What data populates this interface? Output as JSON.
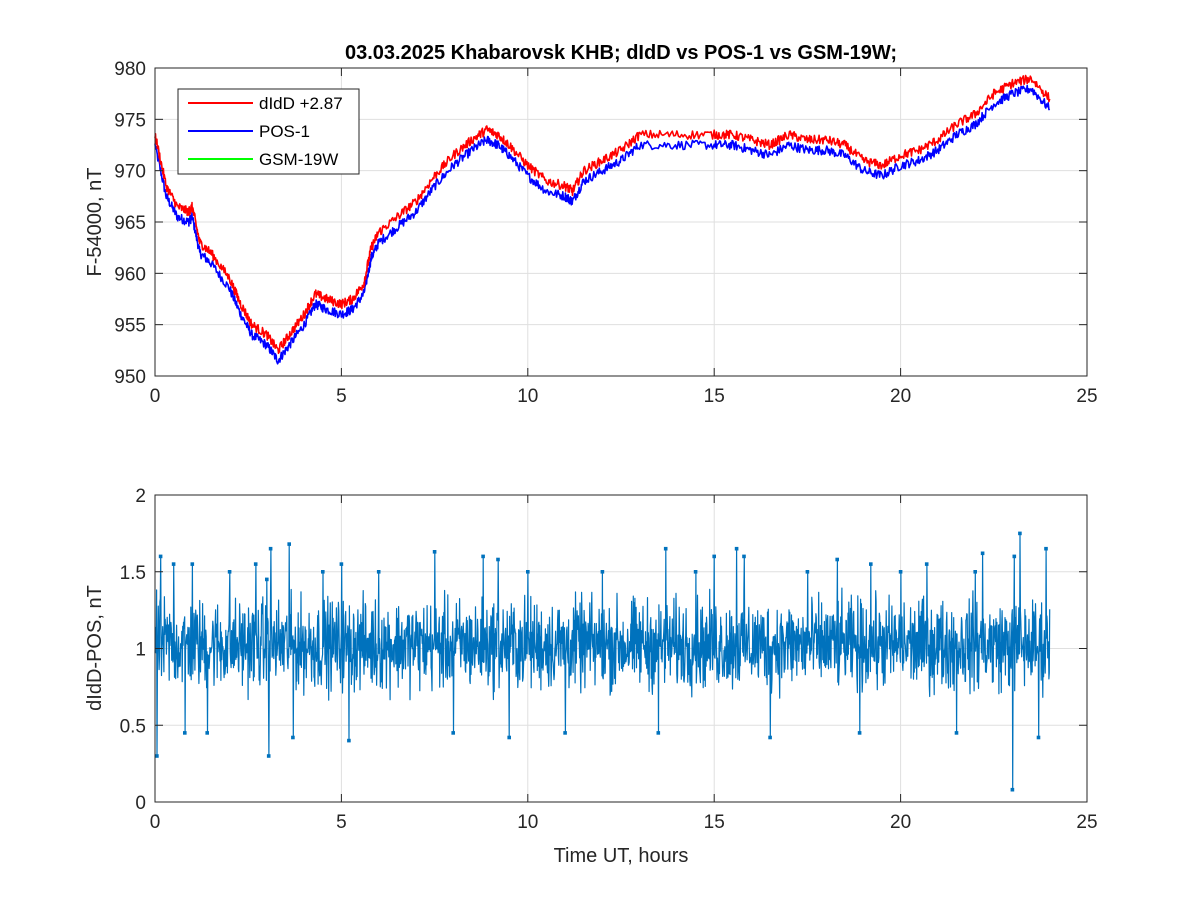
{
  "chart_data": [
    {
      "type": "line",
      "title": "03.03.2025  Khabarovsk KHB; dIdD vs POS-1 vs GSM-19W;",
      "xlabel": "",
      "ylabel": "F-54000, nT",
      "xlim": [
        0,
        25
      ],
      "ylim": [
        950,
        980
      ],
      "xticks": [
        0,
        5,
        10,
        15,
        20,
        25
      ],
      "yticks": [
        950,
        955,
        960,
        965,
        970,
        975,
        980
      ],
      "grid": true,
      "legend_position": "top-left",
      "series": [
        {
          "name": "dIdD +2.87",
          "color": "#ff0000",
          "x": [
            0,
            0.3,
            0.6,
            0.9,
            1.0,
            1.2,
            1.5,
            2.0,
            2.3,
            2.6,
            3.0,
            3.3,
            3.6,
            4.0,
            4.3,
            4.6,
            5.0,
            5.3,
            5.6,
            5.8,
            6.0,
            6.5,
            7.0,
            7.5,
            8.0,
            8.5,
            8.9,
            9.2,
            9.5,
            10.0,
            10.5,
            11.0,
            11.2,
            11.5,
            12.0,
            12.5,
            13.0,
            14.0,
            15.0,
            15.5,
            16.0,
            16.5,
            17.0,
            17.5,
            18.0,
            18.5,
            19.0,
            19.5,
            20.0,
            20.5,
            21.0,
            21.5,
            22.0,
            22.5,
            23.0,
            23.5,
            24.0
          ],
          "values": [
            973.5,
            968.5,
            966.5,
            966.0,
            966.5,
            963.0,
            962.0,
            959.5,
            957.0,
            955.0,
            954.0,
            952.5,
            954.0,
            956.0,
            958.0,
            957.5,
            957.0,
            957.5,
            959.0,
            962.5,
            964.0,
            965.5,
            967.0,
            969.5,
            971.5,
            973.0,
            974.0,
            973.5,
            972.5,
            970.5,
            969.0,
            968.5,
            968.0,
            970.0,
            971.0,
            972.0,
            973.5,
            973.5,
            973.5,
            973.5,
            973.0,
            972.5,
            973.5,
            973.0,
            973.0,
            972.5,
            971.0,
            970.5,
            971.5,
            972.0,
            973.0,
            974.5,
            975.5,
            977.5,
            978.5,
            979.0,
            977.0
          ]
        },
        {
          "name": "POS-1",
          "color": "#0000ff",
          "x": [
            0,
            0.3,
            0.6,
            0.9,
            1.0,
            1.2,
            1.5,
            2.0,
            2.3,
            2.6,
            3.0,
            3.3,
            3.6,
            4.0,
            4.3,
            4.6,
            5.0,
            5.3,
            5.6,
            5.8,
            6.0,
            6.5,
            7.0,
            7.5,
            8.0,
            8.5,
            8.9,
            9.2,
            9.5,
            10.0,
            10.5,
            11.0,
            11.2,
            11.5,
            12.0,
            12.5,
            13.0,
            14.0,
            15.0,
            15.5,
            16.0,
            16.5,
            17.0,
            17.5,
            18.0,
            18.5,
            19.0,
            19.5,
            20.0,
            20.5,
            21.0,
            21.5,
            22.0,
            22.5,
            23.0,
            23.5,
            24.0
          ],
          "values": [
            972.5,
            967.5,
            965.5,
            965.0,
            965.5,
            962.0,
            961.0,
            958.5,
            956.0,
            954.0,
            953.0,
            951.5,
            953.0,
            955.0,
            957.0,
            956.5,
            956.0,
            956.5,
            958.0,
            961.5,
            963.0,
            964.5,
            966.0,
            968.5,
            970.5,
            972.0,
            973.0,
            972.5,
            971.5,
            969.5,
            968.0,
            967.5,
            967.0,
            969.0,
            970.0,
            971.0,
            972.5,
            972.5,
            972.5,
            972.5,
            972.0,
            971.5,
            972.5,
            972.0,
            972.0,
            971.5,
            970.0,
            969.5,
            970.5,
            971.0,
            972.0,
            973.5,
            974.5,
            976.5,
            977.5,
            978.0,
            976.0
          ]
        },
        {
          "name": "GSM-19W",
          "color": "#00ff00",
          "x": [],
          "values": []
        }
      ]
    },
    {
      "type": "line",
      "title": "",
      "xlabel": "Time UT, hours",
      "ylabel": "dIdD-POS, nT",
      "xlim": [
        0,
        25
      ],
      "ylim": [
        0,
        2
      ],
      "xticks": [
        0,
        5,
        10,
        15,
        20,
        25
      ],
      "yticks": [
        0,
        0.5,
        1,
        1.5,
        2
      ],
      "grid": true,
      "series": [
        {
          "color": "#0072bd",
          "x_range": [
            0,
            24
          ],
          "mean": 0.98,
          "band": [
            0.6,
            1.45
          ],
          "spikes": [
            {
              "x": 0.05,
              "y": 0.3
            },
            {
              "x": 0.15,
              "y": 1.6
            },
            {
              "x": 0.5,
              "y": 1.55
            },
            {
              "x": 0.8,
              "y": 0.45
            },
            {
              "x": 1.0,
              "y": 1.55
            },
            {
              "x": 1.4,
              "y": 0.45
            },
            {
              "x": 2.0,
              "y": 1.5
            },
            {
              "x": 2.7,
              "y": 1.55
            },
            {
              "x": 3.0,
              "y": 1.45
            },
            {
              "x": 3.05,
              "y": 0.3
            },
            {
              "x": 3.1,
              "y": 1.65
            },
            {
              "x": 3.6,
              "y": 1.68
            },
            {
              "x": 3.7,
              "y": 0.42
            },
            {
              "x": 4.5,
              "y": 1.5
            },
            {
              "x": 5.0,
              "y": 1.55
            },
            {
              "x": 5.2,
              "y": 0.4
            },
            {
              "x": 6.0,
              "y": 1.5
            },
            {
              "x": 7.5,
              "y": 1.63
            },
            {
              "x": 8.0,
              "y": 0.45
            },
            {
              "x": 8.8,
              "y": 1.6
            },
            {
              "x": 9.2,
              "y": 1.58
            },
            {
              "x": 9.5,
              "y": 0.42
            },
            {
              "x": 10.0,
              "y": 1.5
            },
            {
              "x": 11.0,
              "y": 0.45
            },
            {
              "x": 12.0,
              "y": 1.5
            },
            {
              "x": 13.5,
              "y": 0.45
            },
            {
              "x": 13.7,
              "y": 1.65
            },
            {
              "x": 14.5,
              "y": 1.5
            },
            {
              "x": 15.0,
              "y": 1.6
            },
            {
              "x": 15.6,
              "y": 1.65
            },
            {
              "x": 15.8,
              "y": 1.6
            },
            {
              "x": 16.5,
              "y": 0.42
            },
            {
              "x": 17.5,
              "y": 1.5
            },
            {
              "x": 18.3,
              "y": 1.58
            },
            {
              "x": 18.9,
              "y": 0.45
            },
            {
              "x": 19.2,
              "y": 1.55
            },
            {
              "x": 20.0,
              "y": 1.5
            },
            {
              "x": 20.7,
              "y": 1.55
            },
            {
              "x": 21.5,
              "y": 0.45
            },
            {
              "x": 22.0,
              "y": 1.5
            },
            {
              "x": 22.2,
              "y": 1.62
            },
            {
              "x": 23.0,
              "y": 0.08
            },
            {
              "x": 23.05,
              "y": 1.6
            },
            {
              "x": 23.2,
              "y": 1.75
            },
            {
              "x": 23.7,
              "y": 0.42
            },
            {
              "x": 23.9,
              "y": 1.65
            }
          ]
        }
      ]
    }
  ]
}
